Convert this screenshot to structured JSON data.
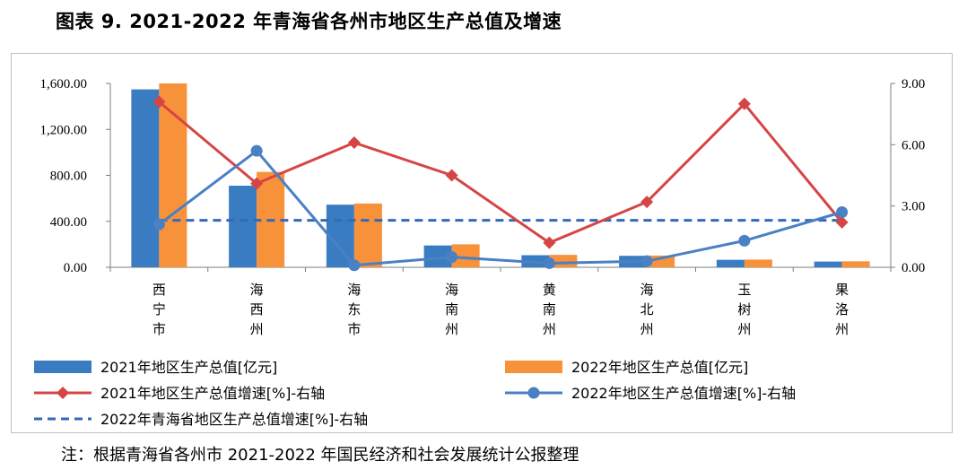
{
  "title": "图表 9. 2021-2022 年青海省各州市地区生产总值及增速",
  "note": "注：根据青海省各州市 2021-2022 年国民经济和社会发展统计公报整理",
  "colors": {
    "gdp2021": "#3a7cc2",
    "gdp2022": "#f7913a",
    "growth2021": "#d64545",
    "growth2022": "#4a80c4",
    "province": "#3369b8"
  },
  "chart_data": {
    "type": "bar",
    "categories": [
      "西宁市",
      "海西州",
      "海东市",
      "海南州",
      "黄南州",
      "海北州",
      "玉树州",
      "果洛州"
    ],
    "category_display": [
      [
        "西",
        "宁",
        "市"
      ],
      [
        "海",
        "西",
        "州"
      ],
      [
        "海",
        "东",
        "市"
      ],
      [
        "海",
        "南",
        "州"
      ],
      [
        "黄",
        "南",
        "州"
      ],
      [
        "海",
        "北",
        "州"
      ],
      [
        "玉",
        "树",
        "州"
      ],
      [
        "果",
        "洛",
        "州"
      ]
    ],
    "left_axis": {
      "ylim": [
        0,
        1600
      ],
      "ticks": [
        "0.00",
        "400.00",
        "800.00",
        "1,200.00",
        "1,600.00"
      ],
      "tick_values": [
        0,
        400,
        800,
        1200,
        1600
      ]
    },
    "right_axis": {
      "ylim": [
        0,
        9
      ],
      "ticks": [
        "0.00",
        "3.00",
        "6.00",
        "9.00"
      ],
      "tick_values": [
        0,
        3,
        6,
        9
      ]
    },
    "series": [
      {
        "key": "gdp2021",
        "name": "2021年地区生产总值[亿元]",
        "kind": "bar",
        "axis": "left",
        "values": [
          1548,
          710,
          545,
          190,
          105,
          100,
          65,
          50
        ]
      },
      {
        "key": "gdp2022",
        "name": "2022年地区生产总值[亿元]",
        "kind": "bar",
        "axis": "left",
        "values": [
          1600,
          830,
          555,
          200,
          108,
          102,
          67,
          52
        ]
      },
      {
        "key": "growth2021",
        "name": "2021年地区生产总值增速[%]-右轴",
        "kind": "line",
        "marker": "diamond",
        "axis": "right",
        "values": [
          8.1,
          4.1,
          6.1,
          4.5,
          1.2,
          3.2,
          8.0,
          2.2
        ]
      },
      {
        "key": "growth2022",
        "name": "2022年地区生产总值增速[%]-右轴",
        "kind": "line",
        "marker": "circle",
        "axis": "right",
        "values": [
          2.1,
          5.7,
          0.1,
          0.5,
          0.2,
          0.3,
          1.3,
          2.7
        ]
      },
      {
        "key": "province",
        "name": "2022年青海省地区生产总值增速[%]-右轴",
        "kind": "hline",
        "style": "dashed",
        "axis": "right",
        "value": 2.3
      }
    ]
  }
}
